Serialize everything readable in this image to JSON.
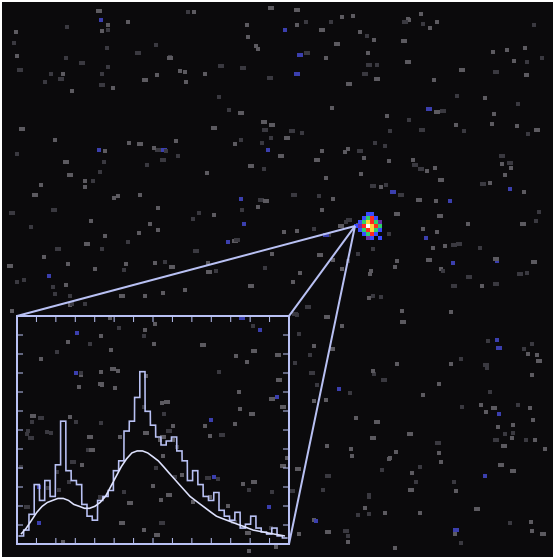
{
  "image": {
    "background_color": "#0b0a0c",
    "noise_color": "#5c5a60",
    "noise_dim_color": "#3a3940",
    "noise_blue_color": "#3b3fae",
    "overlay_line_color": "#b9c1f4",
    "source_colors": [
      "#ff2a1f",
      "#ffd23a",
      "#ffffff",
      "#2fd06a",
      "#3a4bff",
      "#6b2fa8"
    ]
  },
  "inset_spectrum": {
    "type": "line",
    "x": [
      0,
      2,
      4,
      6,
      8,
      10,
      12,
      14,
      16,
      18,
      20,
      22,
      24,
      26,
      28,
      30,
      32,
      34,
      36,
      38,
      40,
      42,
      44,
      46,
      48,
      50,
      52,
      54,
      56,
      58,
      60,
      62,
      64,
      66,
      68,
      70,
      72,
      74,
      76,
      78,
      80,
      82,
      84,
      86,
      88,
      90,
      92,
      94,
      96,
      98,
      100
    ],
    "series": [
      {
        "values": [
          0.02,
          0.05,
          0.13,
          0.28,
          0.2,
          0.3,
          0.22,
          0.38,
          0.6,
          0.35,
          0.3,
          0.28,
          0.18,
          0.12,
          0.1,
          0.2,
          0.22,
          0.25,
          0.35,
          0.4,
          0.55,
          0.6,
          0.72,
          0.85,
          0.65,
          0.58,
          0.52,
          0.48,
          0.5,
          0.52,
          0.45,
          0.4,
          0.3,
          0.35,
          0.28,
          0.22,
          0.2,
          0.24,
          0.15,
          0.12,
          0.1,
          0.14,
          0.06,
          0.08,
          0.12,
          0.06,
          0.04,
          0.03,
          0.06,
          0.02,
          0.01
        ]
      },
      {
        "values": [
          0.03,
          0.06,
          0.1,
          0.14,
          0.17,
          0.19,
          0.2,
          0.21,
          0.21,
          0.2,
          0.18,
          0.17,
          0.16,
          0.16,
          0.17,
          0.19,
          0.22,
          0.27,
          0.32,
          0.37,
          0.41,
          0.44,
          0.45,
          0.45,
          0.44,
          0.42,
          0.4,
          0.37,
          0.34,
          0.31,
          0.28,
          0.25,
          0.22,
          0.2,
          0.18,
          0.16,
          0.14,
          0.12,
          0.11,
          0.1,
          0.09,
          0.08,
          0.07,
          0.06,
          0.05,
          0.045,
          0.04,
          0.035,
          0.03,
          0.025,
          0.02
        ]
      }
    ]
  }
}
